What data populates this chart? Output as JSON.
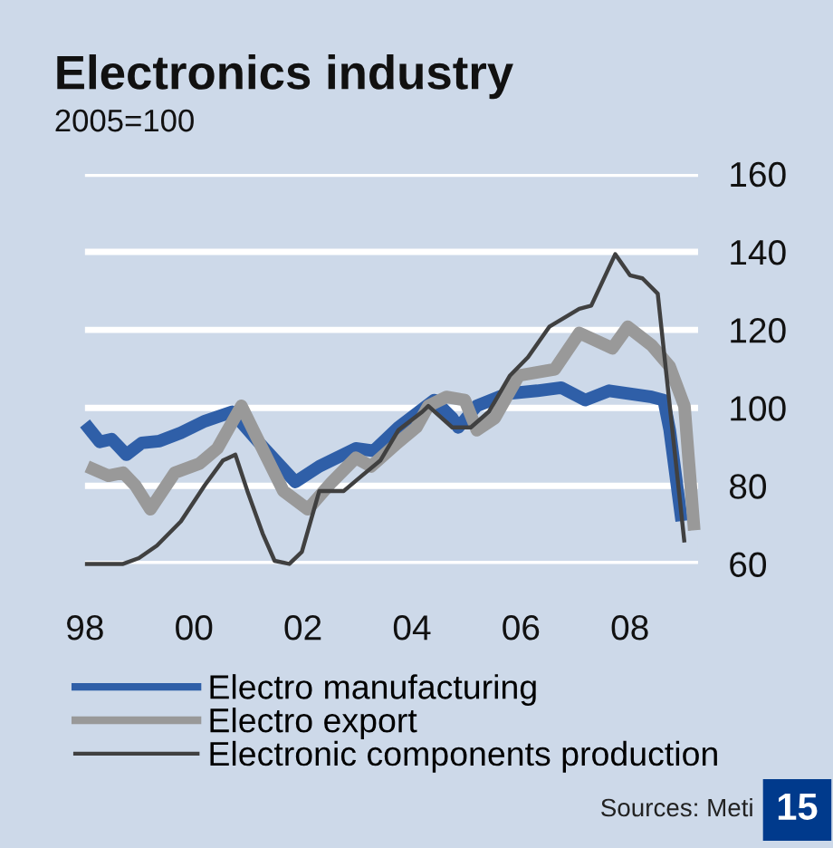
{
  "chart_data": {
    "type": "line",
    "title": "Electronics industry",
    "subtitle": "2005=100",
    "annotations": [
      "Sources: Meti",
      "15"
    ],
    "xlim": [
      1998,
      2009.25
    ],
    "ylim": [
      60,
      160
    ],
    "xticks": [
      {
        "value": 1998,
        "label": "98"
      },
      {
        "value": 2000,
        "label": "00"
      },
      {
        "value": 2002,
        "label": "02"
      },
      {
        "value": 2004,
        "label": "04"
      },
      {
        "value": 2006,
        "label": "06"
      },
      {
        "value": 2008,
        "label": "08"
      }
    ],
    "yticks": [
      60,
      80,
      100,
      120,
      140,
      160
    ],
    "grid": "y",
    "legend": "bottom",
    "marker": "none",
    "line_style": "solid",
    "series": [
      {
        "name": "Electro manufacturing",
        "color": "#2f5fa8",
        "x": [
          1998.0,
          1998.27,
          1998.49,
          1998.76,
          1999.04,
          1999.37,
          1999.76,
          2000.2,
          2000.7,
          2001.2,
          2001.86,
          2002.3,
          2002.97,
          2003.3,
          2003.75,
          2004.41,
          2004.74,
          2004.85,
          2005.19,
          2005.74,
          2006.3,
          2006.74,
          2007.18,
          2007.62,
          2008.4,
          2008.62,
          2008.73,
          2008.95
        ],
        "values": [
          96,
          91.3,
          92,
          88,
          91,
          91.5,
          93.6,
          96.6,
          99,
          91,
          81,
          85,
          89.6,
          89,
          95,
          102,
          97.4,
          95,
          100.5,
          103.6,
          104.4,
          105.2,
          102,
          104.4,
          102.8,
          102,
          94.3,
          71
        ]
      },
      {
        "name": "Electro export",
        "color": "#999999",
        "x": [
          1998.04,
          1998.43,
          1998.7,
          1998.93,
          1999.2,
          1999.65,
          2000.1,
          2000.43,
          2000.87,
          2001.31,
          2001.64,
          2002.09,
          2002.53,
          2002.97,
          2003.25,
          2003.75,
          2004.08,
          2004.3,
          2004.63,
          2004.97,
          2005.19,
          2005.52,
          2005.96,
          2006.62,
          2007.07,
          2007.68,
          2007.96,
          2008.4,
          2008.73,
          2009.0,
          2009.18
        ],
        "values": [
          85,
          82.6,
          83.4,
          80,
          74,
          83.4,
          85.7,
          89.6,
          100.5,
          88,
          78.7,
          74,
          81,
          87.2,
          85,
          91.2,
          95,
          100.5,
          102.8,
          102,
          94.3,
          97.4,
          108.3,
          109.9,
          119.2,
          115.3,
          120.8,
          116,
          110.6,
          100.5,
          68.6
        ]
      },
      {
        "name": "Electronic components production",
        "color": "#404040",
        "x": [
          1998.0,
          1998.7,
          1998.99,
          1999.32,
          1999.76,
          2000.2,
          2000.53,
          2000.76,
          2000.98,
          2001.26,
          2001.48,
          2001.75,
          2001.98,
          2002.3,
          2002.75,
          2003.08,
          2003.42,
          2003.75,
          2004.19,
          2004.3,
          2004.74,
          2005.08,
          2005.41,
          2005.8,
          2006.13,
          2006.52,
          2007.07,
          2007.29,
          2007.73,
          2008.0,
          2008.23,
          2008.51,
          2009.0
        ],
        "values": [
          60,
          60,
          61.5,
          64.7,
          70.9,
          80.2,
          86.5,
          88,
          78.7,
          67.8,
          60.8,
          60,
          63.1,
          78.7,
          78.7,
          82.6,
          86.5,
          94.3,
          99,
          100.5,
          95,
          95,
          99,
          108.3,
          113,
          120.8,
          125.4,
          126.2,
          139.4,
          134,
          133.2,
          129.3,
          65.5
        ]
      }
    ]
  }
}
